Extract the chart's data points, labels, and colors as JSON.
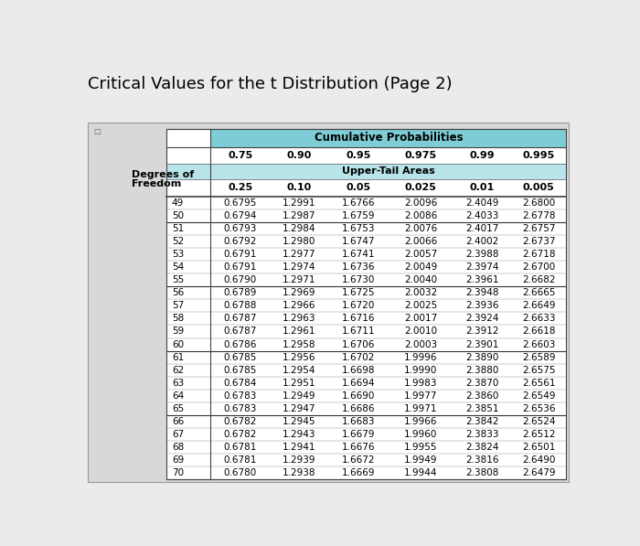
{
  "title": "Critical Values for the t Distribution (Page 2)",
  "cumulative_prob_header": "Cumulative Probabilities",
  "upper_tail_header": "Upper-Tail Areas",
  "col_headers_row1": [
    "0.75",
    "0.90",
    "0.95",
    "0.975",
    "0.99",
    "0.995"
  ],
  "col_headers_row2": [
    "0.25",
    "0.10",
    "0.05",
    "0.025",
    "0.01",
    "0.005"
  ],
  "df_label_line1": "Degrees of",
  "df_label_line2": "Freedom",
  "degrees_of_freedom": [
    49,
    50,
    51,
    52,
    53,
    54,
    55,
    56,
    57,
    58,
    59,
    60,
    61,
    62,
    63,
    64,
    65,
    66,
    67,
    68,
    69,
    70
  ],
  "table_data": [
    [
      0.6795,
      1.2991,
      1.6766,
      2.0096,
      2.4049,
      2.68
    ],
    [
      0.6794,
      1.2987,
      1.6759,
      2.0086,
      2.4033,
      2.6778
    ],
    [
      0.6793,
      1.2984,
      1.6753,
      2.0076,
      2.4017,
      2.6757
    ],
    [
      0.6792,
      1.298,
      1.6747,
      2.0066,
      2.4002,
      2.6737
    ],
    [
      0.6791,
      1.2977,
      1.6741,
      2.0057,
      2.3988,
      2.6718
    ],
    [
      0.6791,
      1.2974,
      1.6736,
      2.0049,
      2.3974,
      2.67
    ],
    [
      0.679,
      1.2971,
      1.673,
      2.004,
      2.3961,
      2.6682
    ],
    [
      0.6789,
      1.2969,
      1.6725,
      2.0032,
      2.3948,
      2.6665
    ],
    [
      0.6788,
      1.2966,
      1.672,
      2.0025,
      2.3936,
      2.6649
    ],
    [
      0.6787,
      1.2963,
      1.6716,
      2.0017,
      2.3924,
      2.6633
    ],
    [
      0.6787,
      1.2961,
      1.6711,
      2.001,
      2.3912,
      2.6618
    ],
    [
      0.6786,
      1.2958,
      1.6706,
      2.0003,
      2.3901,
      2.6603
    ],
    [
      0.6785,
      1.2956,
      1.6702,
      1.9996,
      2.389,
      2.6589
    ],
    [
      0.6785,
      1.2954,
      1.6698,
      1.999,
      2.388,
      2.6575
    ],
    [
      0.6784,
      1.2951,
      1.6694,
      1.9983,
      2.387,
      2.6561
    ],
    [
      0.6783,
      1.2949,
      1.669,
      1.9977,
      2.386,
      2.6549
    ],
    [
      0.6783,
      1.2947,
      1.6686,
      1.9971,
      2.3851,
      2.6536
    ],
    [
      0.6782,
      1.2945,
      1.6683,
      1.9966,
      2.3842,
      2.6524
    ],
    [
      0.6782,
      1.2943,
      1.6679,
      1.996,
      2.3833,
      2.6512
    ],
    [
      0.6781,
      1.2941,
      1.6676,
      1.9955,
      2.3824,
      2.6501
    ],
    [
      0.6781,
      1.2939,
      1.6672,
      1.9949,
      2.3816,
      2.649
    ],
    [
      0.678,
      1.2938,
      1.6669,
      1.9944,
      2.3808,
      2.6479
    ]
  ],
  "group_breaks": [
    51,
    56,
    61,
    66
  ],
  "header_bg_color": "#7ECDD6",
  "subheader_bg_color": "#B8E4EA",
  "white_row_color": "#FFFFFF",
  "outer_box_color": "#D8D8D8",
  "page_bg_color": "#EBEBEB",
  "border_color": "#555555",
  "title_fontsize": 13,
  "header_fontsize": 8,
  "data_fontsize": 7.5
}
